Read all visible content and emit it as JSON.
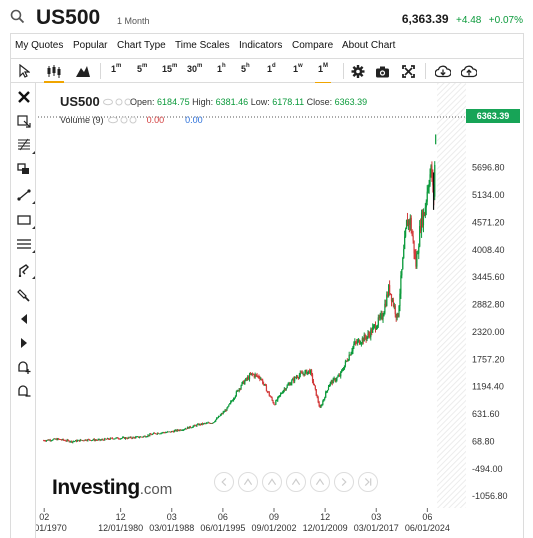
{
  "header": {
    "symbol": "US500",
    "timeframe": "1 Month",
    "last_price": "6,363.39",
    "change": "+4.48",
    "change_pct": "+0.07%"
  },
  "menu": {
    "items": [
      "My Quotes",
      "Popular",
      "Chart Type",
      "Time Scales",
      "Indicators",
      "Compare",
      "About Chart"
    ]
  },
  "toolbar": {
    "intervals": [
      {
        "num": "1",
        "unit": "m"
      },
      {
        "num": "5",
        "unit": "m"
      },
      {
        "num": "15",
        "unit": "m"
      },
      {
        "num": "30",
        "unit": "m"
      },
      {
        "num": "1",
        "unit": "h"
      },
      {
        "num": "5",
        "unit": "h"
      },
      {
        "num": "1",
        "unit": "d"
      },
      {
        "num": "1",
        "unit": "w"
      },
      {
        "num": "1",
        "unit": "M"
      }
    ],
    "active_interval": "1M",
    "icons": [
      "cursor-icon",
      "candlestick-icon",
      "area-chart-icon",
      "settings-icon",
      "camera-icon",
      "fullscreen-icon",
      "download-icon",
      "upload-icon"
    ]
  },
  "left_toolbar": {
    "icons": [
      "close-icon",
      "crosshair-icon",
      "fibonacci-icon",
      "pattern-icon",
      "trend-line-icon",
      "rectangle-icon",
      "horizontal-lines-icon",
      "text-tool-icon",
      "brush-icon",
      "arrow-left-icon",
      "arrow-right-icon",
      "add-alert-icon",
      "remove-alert-icon"
    ]
  },
  "legend": {
    "symbol": "US500",
    "open_label": "Open:",
    "open": "6184.75",
    "high_label": "High:",
    "high": "6381.46",
    "low_label": "Low:",
    "low": "6178.11",
    "close_label": "Close:",
    "close": "6363.39",
    "volume_label": "Volume (9)",
    "volume_value_1": "0.00",
    "volume_value_2": "0.00"
  },
  "logo": {
    "main": "Investing",
    "domain": ".com"
  },
  "colors": {
    "up": "#0b9a3b",
    "down": "#d23b3b",
    "price_label_bg": "#17a457",
    "active_tab": "#f0a500"
  },
  "chart_data": {
    "type": "line",
    "title": "US500",
    "current_price_label": "6363.39",
    "y_ticks": [
      "5696.80",
      "5134.00",
      "4571.20",
      "4008.40",
      "3445.60",
      "2882.80",
      "2320.00",
      "1757.20",
      "1194.40",
      "631.60",
      "68.80",
      "-494.00",
      "-1056.80"
    ],
    "y_tick_values": [
      5696.8,
      5134.0,
      4571.2,
      4008.4,
      3445.6,
      2882.8,
      2320.0,
      1757.2,
      1194.4,
      631.6,
      68.8,
      -494.0,
      -1056.8
    ],
    "ylim": [
      -1300,
      6760
    ],
    "x_ticks_top": [
      "02",
      "12",
      "03",
      "06",
      "09",
      "12",
      "03",
      "06"
    ],
    "x_ticks_bottom": [
      "02/01/1970",
      "12/01/1980",
      "03/01/1988",
      "06/01/1995",
      "09/01/2002",
      "12/01/2009",
      "03/01/2017",
      "06/01/2024"
    ],
    "x_tick_years": [
      1970.08,
      1980.92,
      1988.17,
      1995.42,
      2002.67,
      2009.92,
      2017.17,
      2024.42
    ],
    "xlim": [
      1969.2,
      2029.9
    ],
    "series": [
      {
        "x": [
          1970,
          1972,
          1974,
          1976,
          1978,
          1980,
          1982,
          1984,
          1986,
          1988,
          1990,
          1992,
          1994,
          1996,
          1998,
          1999.5,
          2000.7,
          2002.7,
          2004,
          2006,
          2007.8,
          2009.2,
          2010.5,
          2012,
          2014,
          2016,
          2018,
          2019,
          2020.2,
          2020.6,
          2021.5,
          2022.0,
          2022.8,
          2023.5,
          2024.0,
          2024.6,
          2025.0,
          2025.3,
          2025.6
        ],
        "values": [
          90,
          115,
          68,
          105,
          96,
          135,
          140,
          165,
          240,
          265,
          330,
          415,
          460,
          740,
          1230,
          1450,
          1390,
          830,
          1130,
          1420,
          1520,
          740,
          1250,
          1420,
          2060,
          2240,
          2640,
          3230,
          2580,
          3270,
          4580,
          4600,
          3700,
          4600,
          4770,
          5470,
          5650,
          5000,
          6363
        ]
      }
    ]
  }
}
